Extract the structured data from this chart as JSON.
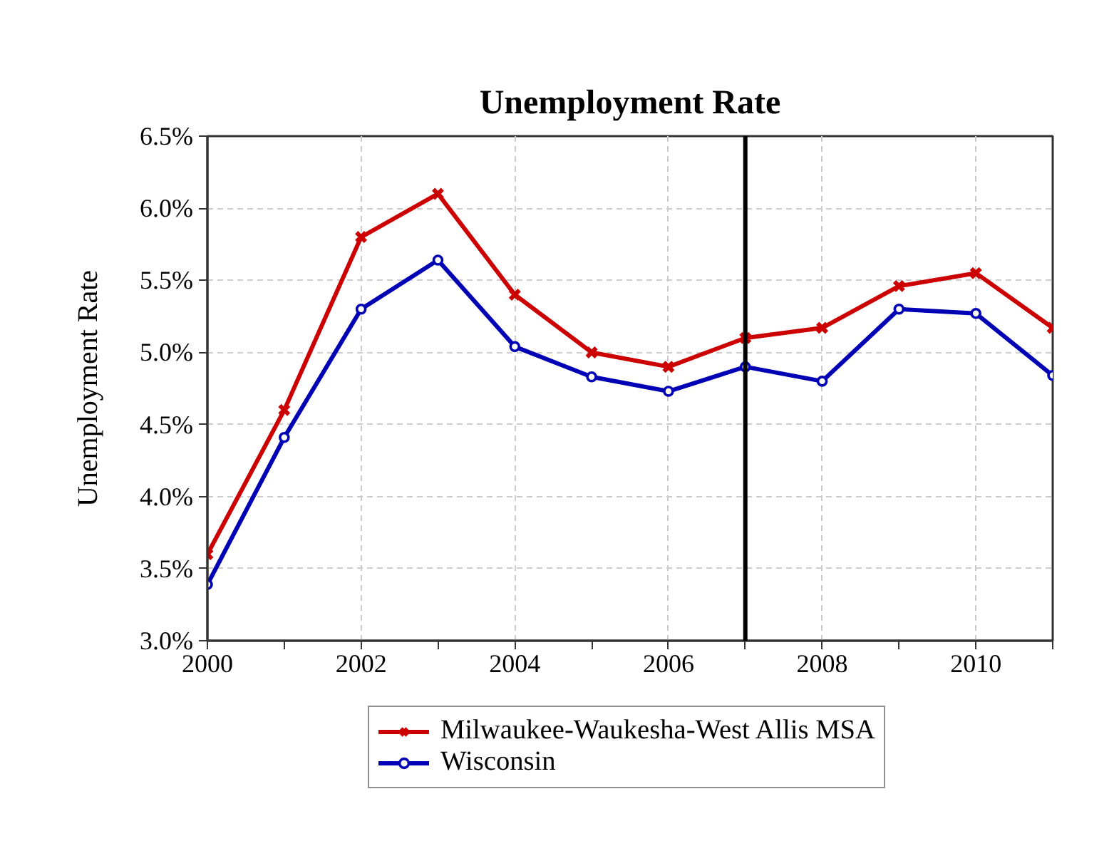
{
  "chart_data": {
    "type": "line",
    "title": "Unemployment Rate",
    "ylabel": "Unemployment Rate",
    "x": [
      2000,
      2001,
      2002,
      2003,
      2004,
      2005,
      2006,
      2007,
      2008,
      2009,
      2010,
      2011
    ],
    "xlim": [
      2000,
      2011
    ],
    "xticks": [
      2000,
      {
        "value": 2001,
        "label": null
      },
      2002,
      {
        "value": 2003,
        "label": null
      },
      2004,
      {
        "value": 2005,
        "label": null
      },
      2006,
      {
        "value": 2007,
        "label": null
      },
      2008,
      {
        "value": 2009,
        "label": null
      },
      2010,
      {
        "value": 2011,
        "label": null
      }
    ],
    "ylim": [
      3.0,
      6.5
    ],
    "yticks": [
      {
        "value": 3.0,
        "label": "3.0%"
      },
      {
        "value": 3.5,
        "label": "3.5%"
      },
      {
        "value": 4.0,
        "label": "4.0%"
      },
      {
        "value": 4.5,
        "label": "4.5%"
      },
      {
        "value": 5.0,
        "label": "5.0%"
      },
      {
        "value": 5.5,
        "label": "5.5%"
      },
      {
        "value": 6.0,
        "label": "6.0%"
      },
      {
        "value": 6.5,
        "label": "6.5%"
      }
    ],
    "grid": true,
    "legend": "bottom",
    "line_style": "solid",
    "ref_lines": [
      {
        "axis": "x",
        "value": 2007,
        "color": "#000000"
      }
    ],
    "series": [
      {
        "name": "Milwaukee-Waukesha-West Allis MSA",
        "color": "#cc0000",
        "marker": "cross",
        "values": [
          3.6,
          4.6,
          5.8,
          6.1,
          5.4,
          5.0,
          4.9,
          5.1,
          5.17,
          5.46,
          5.55,
          5.17
        ]
      },
      {
        "name": "Wisconsin",
        "color": "#0000b4",
        "marker": "circle",
        "values": [
          3.39,
          4.41,
          5.3,
          5.64,
          5.04,
          4.83,
          4.73,
          4.9,
          4.8,
          5.3,
          5.27,
          4.84
        ]
      }
    ]
  }
}
